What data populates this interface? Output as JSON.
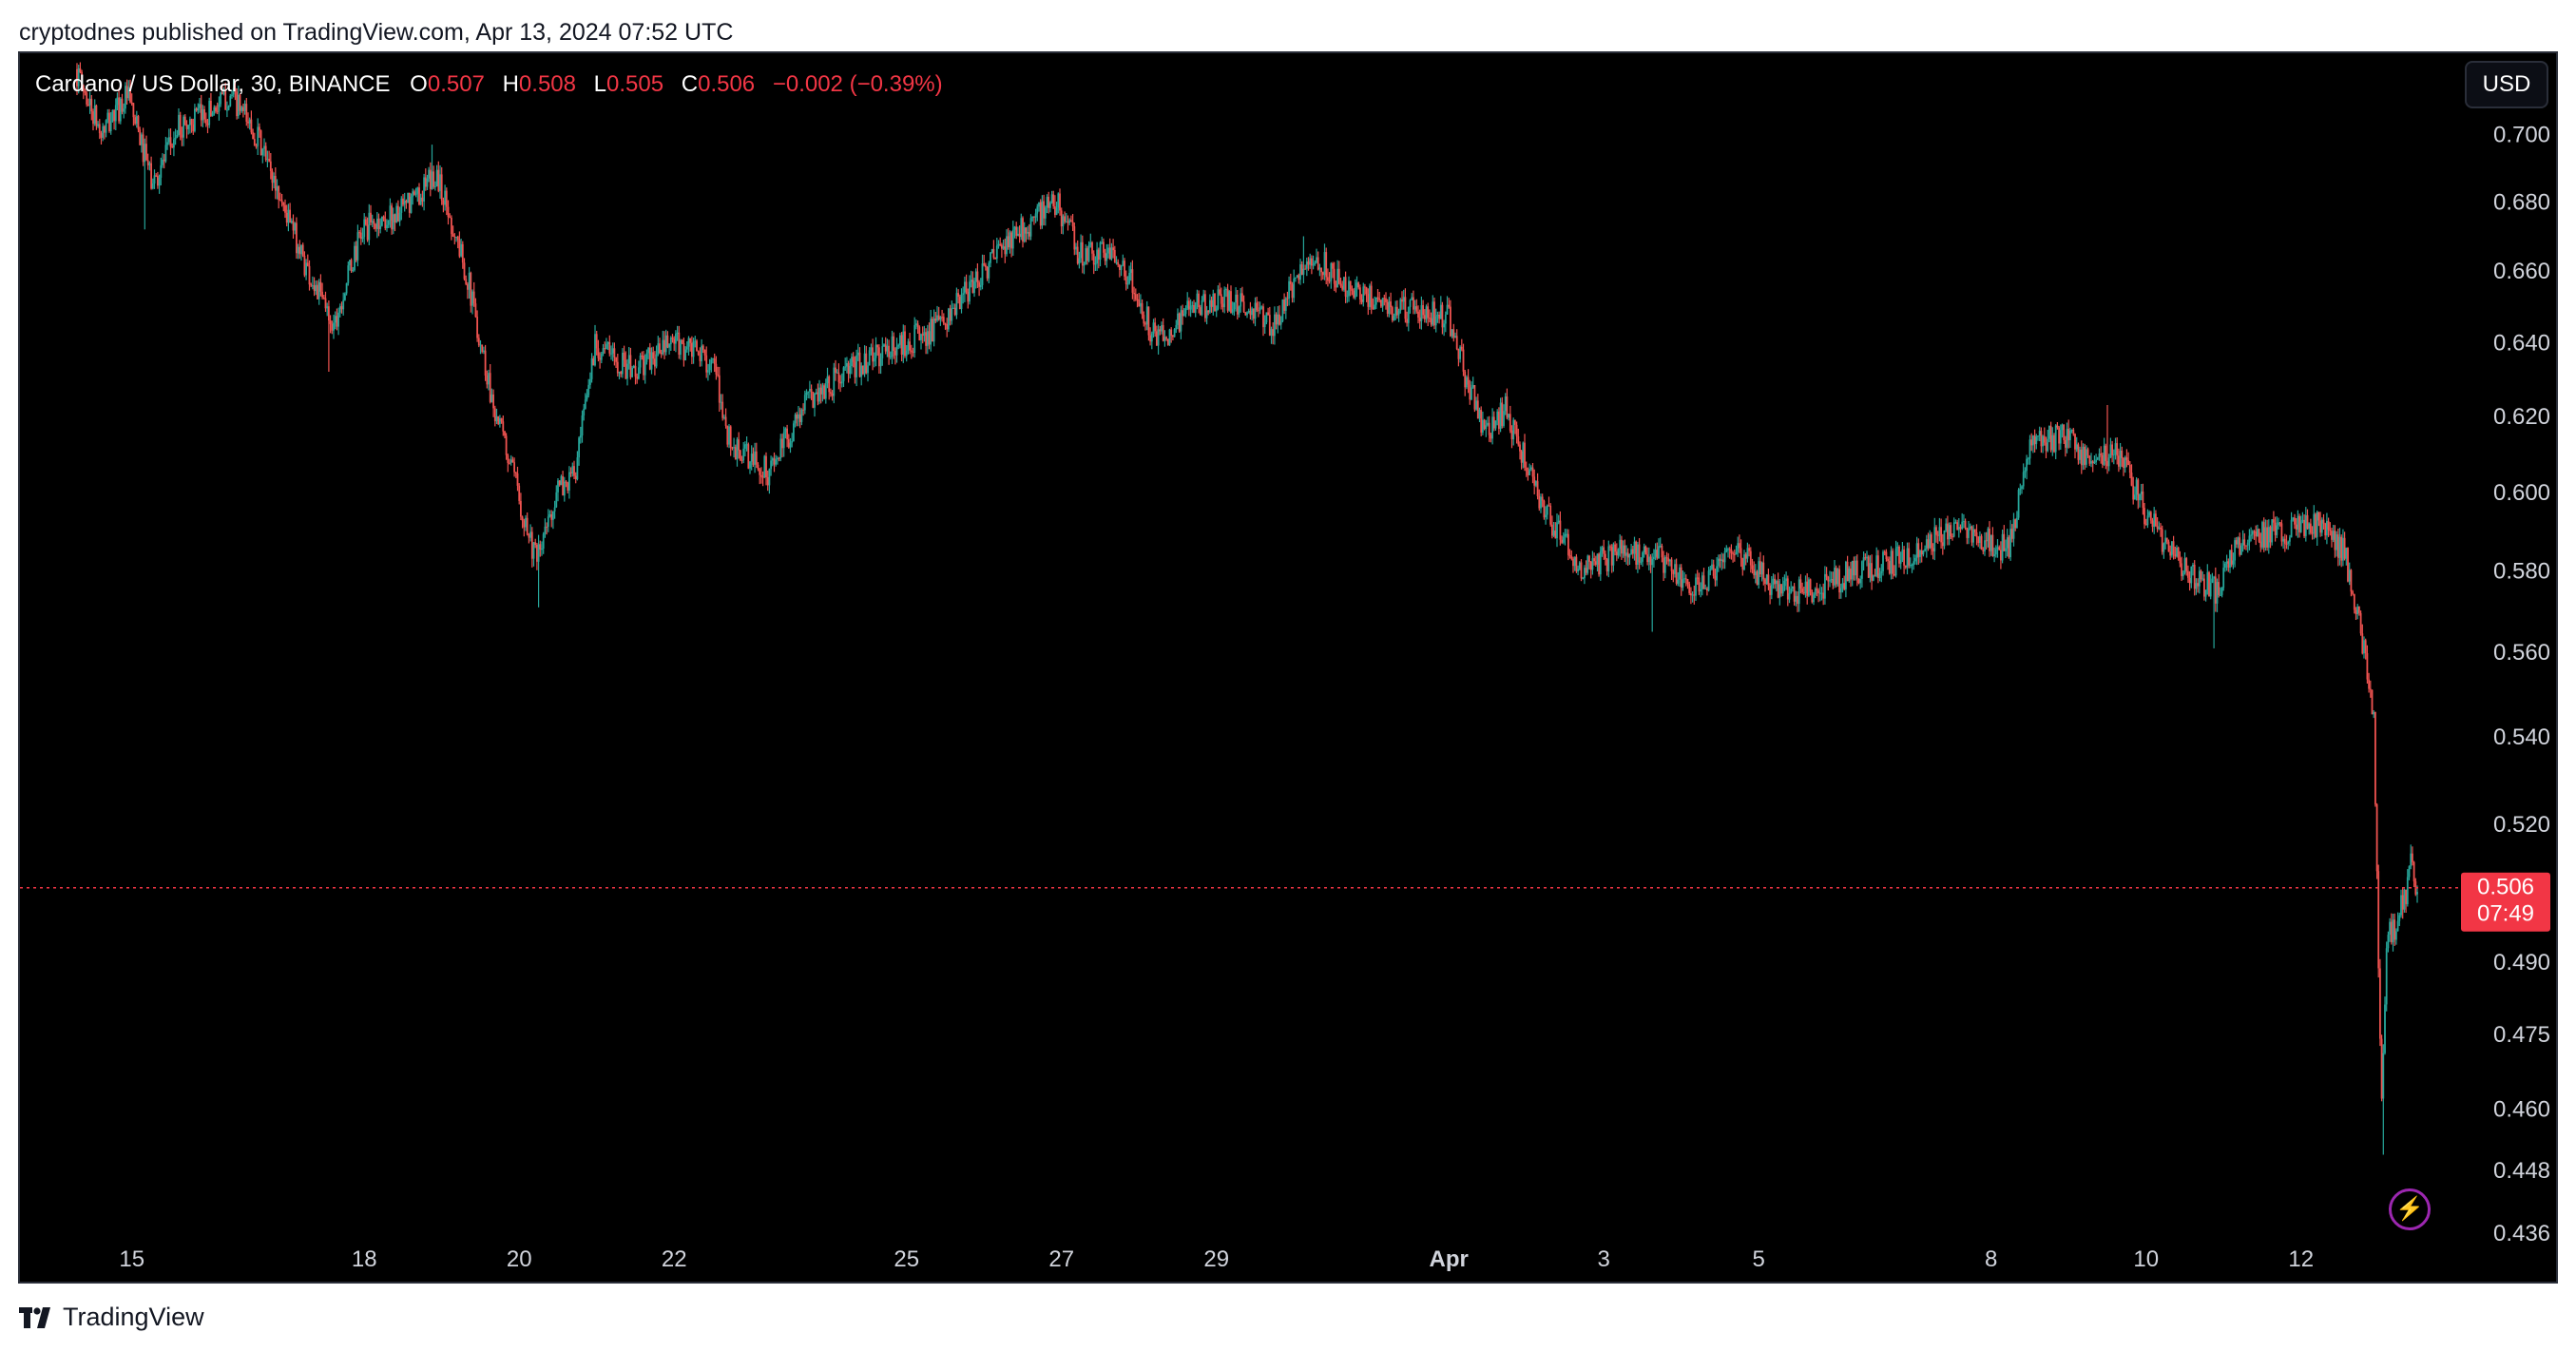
{
  "caption": "cryptodnes published on TradingView.com, Apr 13, 2024 07:52 UTC",
  "footer": {
    "brand": "TradingView"
  },
  "currency_button": "USD",
  "legend": {
    "symbol": "Cardano / US Dollar, 30, BINANCE",
    "o_label": "O",
    "o_value": "0.507",
    "h_label": "H",
    "h_value": "0.508",
    "l_label": "L",
    "l_value": "0.505",
    "c_label": "C",
    "c_value": "0.506",
    "change": "−0.002 (−0.39%)"
  },
  "colors": {
    "up": "#26a69a",
    "down": "#ef5350",
    "background": "#000000",
    "axis_text": "#d1d4dc",
    "price_badge": "#f23645",
    "purple": "#9c27b0"
  },
  "chart_data": {
    "type": "candlestick",
    "title": "Cardano / US Dollar, 30, BINANCE",
    "xlabel": "",
    "ylabel": "",
    "y_scale": "log",
    "ylim": [
      0.427,
      0.725
    ],
    "x_range": [
      "2024-03-14T07:00",
      "2024-04-13T12:00"
    ],
    "grid": false,
    "y_ticks": [
      "0.700",
      "0.680",
      "0.660",
      "0.640",
      "0.620",
      "0.600",
      "0.580",
      "0.560",
      "0.540",
      "0.520",
      "0.490",
      "0.475",
      "0.460",
      "0.448",
      "0.436"
    ],
    "x_ticks": [
      {
        "label": "15",
        "date": "2024-03-15",
        "bold": false
      },
      {
        "label": "18",
        "date": "2024-03-18",
        "bold": false
      },
      {
        "label": "20",
        "date": "2024-03-20",
        "bold": false
      },
      {
        "label": "22",
        "date": "2024-03-22",
        "bold": false
      },
      {
        "label": "25",
        "date": "2024-03-25",
        "bold": false
      },
      {
        "label": "27",
        "date": "2024-03-27",
        "bold": false
      },
      {
        "label": "29",
        "date": "2024-03-29",
        "bold": false
      },
      {
        "label": "Apr",
        "date": "2024-04-01",
        "bold": true
      },
      {
        "label": "3",
        "date": "2024-04-03",
        "bold": false
      },
      {
        "label": "5",
        "date": "2024-04-05",
        "bold": false
      },
      {
        "label": "8",
        "date": "2024-04-08",
        "bold": false
      },
      {
        "label": "10",
        "date": "2024-04-10",
        "bold": false
      },
      {
        "label": "12",
        "date": "2024-04-12",
        "bold": false
      }
    ],
    "current_price": {
      "value": "0.506",
      "countdown": "07:49"
    },
    "price_path": [
      [
        "2024-03-14T07:00",
        0.72
      ],
      [
        "2024-03-14T15:00",
        0.7
      ],
      [
        "2024-03-14T23:00",
        0.712
      ],
      [
        "2024-03-15T07:00",
        0.685
      ],
      [
        "2024-03-15T15:00",
        0.702
      ],
      [
        "2024-03-15T23:00",
        0.706
      ],
      [
        "2024-03-16T07:00",
        0.712
      ],
      [
        "2024-03-16T15:00",
        0.7
      ],
      [
        "2024-03-16T23:00",
        0.68
      ],
      [
        "2024-03-17T07:00",
        0.66
      ],
      [
        "2024-03-17T15:00",
        0.645
      ],
      [
        "2024-03-18T00:00",
        0.672
      ],
      [
        "2024-03-18T12:00",
        0.677
      ],
      [
        "2024-03-18T23:00",
        0.688
      ],
      [
        "2024-03-19T08:00",
        0.66
      ],
      [
        "2024-03-19T16:00",
        0.625
      ],
      [
        "2024-03-20T00:00",
        0.6
      ],
      [
        "2024-03-20T06:00",
        0.582
      ],
      [
        "2024-03-20T12:00",
        0.6
      ],
      [
        "2024-03-20T18:00",
        0.605
      ],
      [
        "2024-03-21T00:00",
        0.64
      ],
      [
        "2024-03-21T12:00",
        0.632
      ],
      [
        "2024-03-22T00:00",
        0.64
      ],
      [
        "2024-03-22T12:00",
        0.635
      ],
      [
        "2024-03-22T18:00",
        0.612
      ],
      [
        "2024-03-23T06:00",
        0.605
      ],
      [
        "2024-03-23T18:00",
        0.625
      ],
      [
        "2024-03-24T12:00",
        0.635
      ],
      [
        "2024-03-25T00:00",
        0.64
      ],
      [
        "2024-03-25T12:00",
        0.645
      ],
      [
        "2024-03-26T00:00",
        0.66
      ],
      [
        "2024-03-26T12:00",
        0.672
      ],
      [
        "2024-03-26T23:00",
        0.68
      ],
      [
        "2024-03-27T06:00",
        0.665
      ],
      [
        "2024-03-27T18:00",
        0.665
      ],
      [
        "2024-03-28T06:00",
        0.64
      ],
      [
        "2024-03-28T18:00",
        0.65
      ],
      [
        "2024-03-29T06:00",
        0.652
      ],
      [
        "2024-03-29T18:00",
        0.645
      ],
      [
        "2024-03-30T06:00",
        0.665
      ],
      [
        "2024-03-30T18:00",
        0.655
      ],
      [
        "2024-03-31T06:00",
        0.65
      ],
      [
        "2024-03-31T18:00",
        0.648
      ],
      [
        "2024-04-01T00:00",
        0.648
      ],
      [
        "2024-04-01T06:00",
        0.63
      ],
      [
        "2024-04-01T12:00",
        0.615
      ],
      [
        "2024-04-01T18:00",
        0.622
      ],
      [
        "2024-04-02T06:00",
        0.595
      ],
      [
        "2024-04-02T18:00",
        0.58
      ],
      [
        "2024-04-03T06:00",
        0.585
      ],
      [
        "2024-04-03T18:00",
        0.583
      ],
      [
        "2024-04-04T06:00",
        0.575
      ],
      [
        "2024-04-04T18:00",
        0.585
      ],
      [
        "2024-04-05T06:00",
        0.575
      ],
      [
        "2024-04-05T18:00",
        0.575
      ],
      [
        "2024-04-06T06:00",
        0.58
      ],
      [
        "2024-04-06T18:00",
        0.582
      ],
      [
        "2024-04-07T06:00",
        0.588
      ],
      [
        "2024-04-07T18:00",
        0.59
      ],
      [
        "2024-04-08T06:00",
        0.585
      ],
      [
        "2024-04-08T12:00",
        0.612
      ],
      [
        "2024-04-08T23:00",
        0.615
      ],
      [
        "2024-04-09T08:00",
        0.608
      ],
      [
        "2024-04-09T16:00",
        0.61
      ],
      [
        "2024-04-10T00:00",
        0.595
      ],
      [
        "2024-04-10T12:00",
        0.58
      ],
      [
        "2024-04-10T22:00",
        0.575
      ],
      [
        "2024-04-11T06:00",
        0.588
      ],
      [
        "2024-04-11T18:00",
        0.59
      ],
      [
        "2024-04-12T06:00",
        0.592
      ],
      [
        "2024-04-12T14:00",
        0.585
      ],
      [
        "2024-04-12T20:00",
        0.56
      ],
      [
        "2024-04-12T23:00",
        0.545
      ],
      [
        "2024-04-13T00:30",
        0.49
      ],
      [
        "2024-04-13T01:30",
        0.46
      ],
      [
        "2024-04-13T03:00",
        0.495
      ],
      [
        "2024-04-13T06:00",
        0.498
      ],
      [
        "2024-04-13T09:00",
        0.505
      ],
      [
        "2024-04-13T10:30",
        0.512
      ],
      [
        "2024-04-13T12:00",
        0.506
      ]
    ],
    "spikes": [
      [
        "2024-03-15T04:00",
        0.672
      ],
      [
        "2024-03-17T13:00",
        0.632
      ],
      [
        "2024-03-18T21:00",
        0.697
      ],
      [
        "2024-03-20T06:00",
        0.571
      ],
      [
        "2024-03-26T22:00",
        0.682
      ],
      [
        "2024-03-30T03:00",
        0.67
      ],
      [
        "2024-04-03T15:00",
        0.565
      ],
      [
        "2024-04-09T12:00",
        0.623
      ],
      [
        "2024-04-10T21:00",
        0.561
      ],
      [
        "2024-04-13T01:30",
        0.451
      ],
      [
        "2024-04-13T10:30",
        0.514
      ]
    ]
  }
}
